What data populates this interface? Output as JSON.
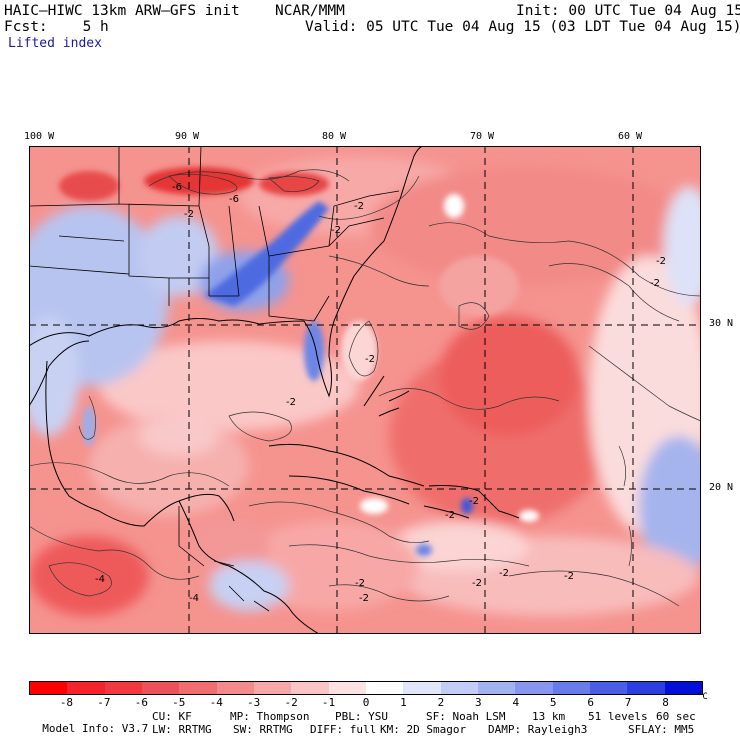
{
  "header": {
    "model": "HAIC–HIWC 13km ARW–GFS init",
    "org": "NCAR/MMM",
    "init": "Init: 00 UTC Tue 04 Aug 15",
    "fcst": "Fcst:    5 h",
    "valid": "Valid: 05 UTC Tue 04 Aug 15 (03 LDT Tue 04 Aug 15)",
    "field": "Lifted index"
  },
  "map": {
    "lon_labels": [
      "100 W",
      "90 W",
      "80 W",
      "70 W",
      "60 W"
    ],
    "lat_labels": [
      "30 N",
      "20 N"
    ],
    "contour_labels": [
      "-6",
      "-6",
      "-2",
      "-2",
      "-2",
      "-2",
      "-2",
      "-2",
      "-2",
      "-2",
      "-2",
      "-4",
      "-4",
      "-2",
      "-2",
      "-2",
      "-2",
      "-2"
    ],
    "colors": {
      "background_red": "#f5938f",
      "deep_red": "#e8323a",
      "blue": "#5a78e0",
      "light_blue": "#a9b8ee"
    }
  },
  "colorbar": {
    "ticks": [
      "-8",
      "-7",
      "-6",
      "-5",
      "-4",
      "-3",
      "-2",
      "-1",
      "0",
      "1",
      "2",
      "3",
      "4",
      "5",
      "6",
      "7",
      "8"
    ],
    "unit": "°C",
    "colors": [
      "#ff0000",
      "#f5242a",
      "#f13a40",
      "#ee5258",
      "#f06e72",
      "#f38a8c",
      "#f6a7a8",
      "#fac5c5",
      "#fde2e2",
      "#ffffff",
      "#e2e6fb",
      "#c3ccf6",
      "#a5b2f2",
      "#8797ee",
      "#687bea",
      "#4a5fe6",
      "#2a40e0",
      "#0010d8"
    ]
  },
  "footer": {
    "line1_a": "Model Info: V3.7",
    "line1_b": "CU: KF",
    "line1_c": "MP: Thompson",
    "line1_d": "PBL: YSU",
    "line1_e": "SF: Noah LSM",
    "line1_f": "13 km",
    "line1_g": "51 levels",
    "line1_h": "60 sec",
    "line2_a": "LW: RRTMG",
    "line2_b": "SW: RRTMG",
    "line2_c": "DIFF: full",
    "line2_d": "KM: 2D Smagor",
    "line2_e": "DAMP: Rayleigh3",
    "line2_f": "SFLAY: MM5"
  }
}
